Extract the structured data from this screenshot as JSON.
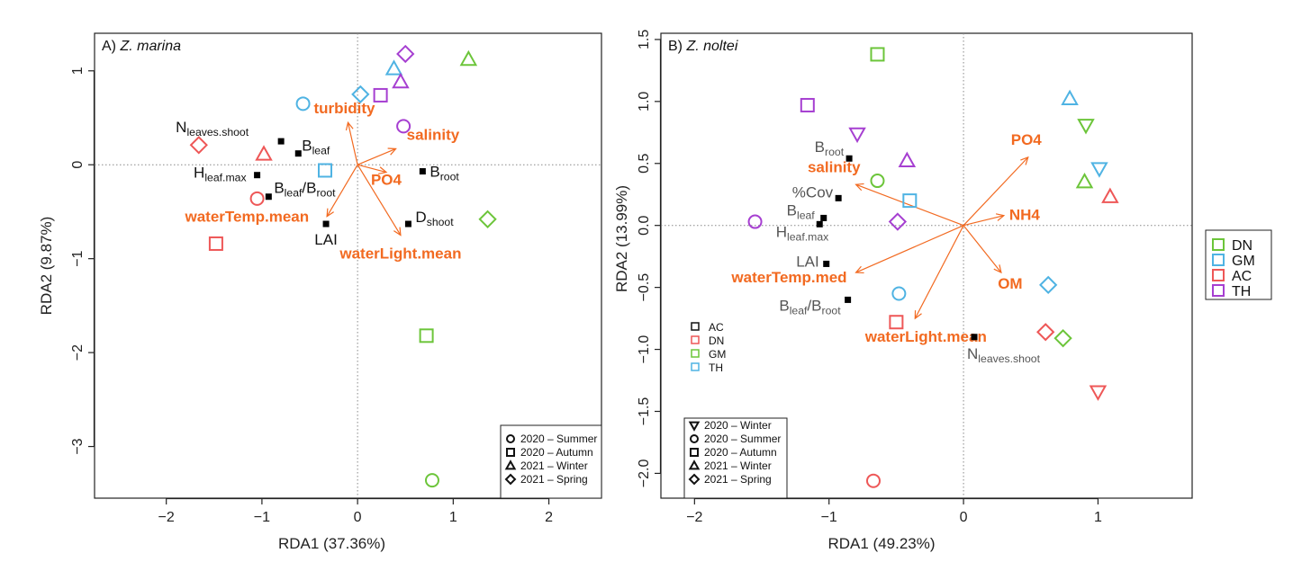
{
  "colors": {
    "DN": "#6cc53a",
    "GM": "#4fb3e3",
    "AC": "#ee5757",
    "TH": "#a63fd1",
    "arrow": "#f26a21",
    "variable_black": "#111111",
    "variable_grey": "#555555"
  },
  "chart_data": [
    {
      "type": "scatter",
      "panel_label": "A)",
      "panel_species": "Z. marina",
      "xlabel": "RDA1 (37.36%)",
      "ylabel": "RDA2 (9.87%)",
      "xlim": [
        -2.75,
        2.55
      ],
      "ylim": [
        -3.55,
        1.4
      ],
      "xticks": [
        -2,
        -1,
        0,
        1,
        2
      ],
      "yticks": [
        -3,
        -2,
        -1,
        0,
        1
      ],
      "grid": false,
      "zero_lines": true,
      "season_legend": {
        "position": "bottom-right",
        "items": [
          {
            "label": "2020 – Summer",
            "shape": "circle"
          },
          {
            "label": "2020 – Autumn",
            "shape": "square"
          },
          {
            "label": "2021 – Winter",
            "shape": "triangle-up"
          },
          {
            "label": "2021 – Spring",
            "shape": "diamond"
          }
        ]
      },
      "sites": [
        {
          "site": "TH",
          "shape": "diamond",
          "x": 0.5,
          "y": 1.18
        },
        {
          "site": "GM",
          "shape": "triangle-up",
          "x": 0.38,
          "y": 1.02
        },
        {
          "site": "TH",
          "shape": "triangle-up",
          "x": 0.45,
          "y": 0.88
        },
        {
          "site": "DN",
          "shape": "triangle-up",
          "x": 1.16,
          "y": 1.12
        },
        {
          "site": "GM",
          "shape": "diamond",
          "x": 0.03,
          "y": 0.75
        },
        {
          "site": "TH",
          "shape": "square",
          "x": 0.24,
          "y": 0.74
        },
        {
          "site": "GM",
          "shape": "circle",
          "x": -0.57,
          "y": 0.65
        },
        {
          "site": "TH",
          "shape": "circle",
          "x": 0.48,
          "y": 0.41
        },
        {
          "site": "AC",
          "shape": "diamond",
          "x": -1.66,
          "y": 0.21
        },
        {
          "site": "AC",
          "shape": "triangle-up",
          "x": -0.98,
          "y": 0.11
        },
        {
          "site": "GM",
          "shape": "square",
          "x": -0.34,
          "y": -0.06
        },
        {
          "site": "AC",
          "shape": "circle",
          "x": -1.05,
          "y": -0.36
        },
        {
          "site": "AC",
          "shape": "square",
          "x": -1.48,
          "y": -0.84
        },
        {
          "site": "DN",
          "shape": "diamond",
          "x": 1.36,
          "y": -0.58
        },
        {
          "site": "DN",
          "shape": "square",
          "x": 0.72,
          "y": -1.82
        },
        {
          "site": "DN",
          "shape": "circle",
          "x": 0.78,
          "y": -3.36
        }
      ],
      "response_variables": [
        {
          "main": "N",
          "sub": "leaves.shoot",
          "x": -0.8,
          "y": 0.25
        },
        {
          "main": "B",
          "sub": "leaf",
          "x": -0.62,
          "y": 0.12
        },
        {
          "main": "H",
          "sub": "leaf.max",
          "x": -1.05,
          "y": -0.11
        },
        {
          "main": "B",
          "sub": "leaf",
          "main2": "/B",
          "sub2": "root",
          "x": -0.93,
          "y": -0.34
        },
        {
          "main": "LAI",
          "sub": "",
          "x": -0.33,
          "y": -0.63
        },
        {
          "main": "B",
          "sub": "root",
          "x": 0.68,
          "y": -0.07
        },
        {
          "main": "D",
          "sub": "shoot",
          "x": 0.53,
          "y": -0.63
        }
      ],
      "environmental_vectors": [
        {
          "label": "turbidity",
          "x": -0.1,
          "y": 0.45
        },
        {
          "label": "salinity",
          "x": 0.4,
          "y": 0.17
        },
        {
          "label": "PO4",
          "x": 0.3,
          "y": -0.08
        },
        {
          "label": "waterTemp.mean",
          "x": -0.32,
          "y": -0.55
        },
        {
          "label": "waterLight.mean",
          "x": 0.45,
          "y": -0.75
        }
      ]
    },
    {
      "type": "scatter",
      "panel_label": "B)",
      "panel_species": "Z. noltei",
      "xlabel": "RDA1 (49.23%)",
      "ylabel": "RDA2 (13.99%)",
      "xlim": [
        -2.25,
        1.7
      ],
      "ylim": [
        -2.2,
        1.55
      ],
      "xticks": [
        -2,
        -1,
        0,
        1
      ],
      "yticks": [
        -2.0,
        -1.5,
        -1.0,
        -0.5,
        0.0,
        0.5,
        1.0,
        1.5
      ],
      "grid": false,
      "zero_lines": true,
      "site_legend_small": {
        "position": "left-center",
        "items": [
          "AC",
          "DN",
          "GM",
          "TH"
        ],
        "colors": [
          "#111111",
          "#ee5757",
          "#6cc53a",
          "#4fb3e3"
        ]
      },
      "season_legend": {
        "position": "bottom-left",
        "items": [
          {
            "label": "2020 – Winter",
            "shape": "triangle-down"
          },
          {
            "label": "2020 – Summer",
            "shape": "circle"
          },
          {
            "label": "2020 – Autumn",
            "shape": "square"
          },
          {
            "label": "2021 – Winter",
            "shape": "triangle-up"
          },
          {
            "label": "2021 – Spring",
            "shape": "diamond"
          }
        ]
      },
      "site_legend": {
        "position": "outside-right",
        "items": [
          "DN",
          "GM",
          "AC",
          "TH"
        ]
      },
      "sites": [
        {
          "site": "DN",
          "shape": "square",
          "x": -0.64,
          "y": 1.38
        },
        {
          "site": "TH",
          "shape": "square",
          "x": -1.16,
          "y": 0.97
        },
        {
          "site": "GM",
          "shape": "triangle-up",
          "x": 0.79,
          "y": 1.02
        },
        {
          "site": "DN",
          "shape": "triangle-down",
          "x": 0.91,
          "y": 0.81
        },
        {
          "site": "TH",
          "shape": "triangle-down",
          "x": -0.79,
          "y": 0.74
        },
        {
          "site": "TH",
          "shape": "triangle-up",
          "x": -0.42,
          "y": 0.52
        },
        {
          "site": "GM",
          "shape": "triangle-down",
          "x": 1.01,
          "y": 0.46
        },
        {
          "site": "DN",
          "shape": "circle",
          "x": -0.64,
          "y": 0.36
        },
        {
          "site": "DN",
          "shape": "triangle-up",
          "x": 0.9,
          "y": 0.35
        },
        {
          "site": "AC",
          "shape": "triangle-up",
          "x": 1.09,
          "y": 0.23
        },
        {
          "site": "GM",
          "shape": "square",
          "x": -0.4,
          "y": 0.2
        },
        {
          "site": "TH",
          "shape": "circle",
          "x": -1.55,
          "y": 0.03
        },
        {
          "site": "TH",
          "shape": "diamond",
          "x": -0.49,
          "y": 0.03
        },
        {
          "site": "GM",
          "shape": "diamond",
          "x": 0.63,
          "y": -0.48
        },
        {
          "site": "GM",
          "shape": "circle",
          "x": -0.48,
          "y": -0.55
        },
        {
          "site": "AC",
          "shape": "square",
          "x": -0.5,
          "y": -0.78
        },
        {
          "site": "AC",
          "shape": "diamond",
          "x": 0.61,
          "y": -0.86
        },
        {
          "site": "DN",
          "shape": "diamond",
          "x": 0.74,
          "y": -0.91
        },
        {
          "site": "AC",
          "shape": "triangle-down",
          "x": 1.0,
          "y": -1.34
        },
        {
          "site": "AC",
          "shape": "circle",
          "x": -0.67,
          "y": -2.06
        }
      ],
      "response_variables": [
        {
          "main": "B",
          "sub": "root",
          "x": -0.85,
          "y": 0.54
        },
        {
          "main": "salinity",
          "sub": "",
          "x": -0.78,
          "y": 0.4,
          "color": "arrow"
        },
        {
          "main": "%Cov",
          "sub": "",
          "x": -0.93,
          "y": 0.22
        },
        {
          "main": "B",
          "sub": "leaf",
          "x": -1.04,
          "y": 0.06
        },
        {
          "main": "H",
          "sub": "leaf.max",
          "x": -1.07,
          "y": 0.01
        },
        {
          "main": "LAI",
          "sub": "",
          "x": -1.02,
          "y": -0.31
        },
        {
          "main": "B",
          "sub": "leaf",
          "main2": "/B",
          "sub2": "root",
          "x": -0.86,
          "y": -0.6
        },
        {
          "main": "N",
          "sub": "leaves.shoot",
          "x": 0.08,
          "y": -0.9
        }
      ],
      "environmental_vectors": [
        {
          "label": "PO4",
          "x": 0.48,
          "y": 0.55
        },
        {
          "label": "salinity",
          "x": -0.8,
          "y": 0.33
        },
        {
          "label": "NH4",
          "x": 0.3,
          "y": 0.08
        },
        {
          "label": "waterTemp.med",
          "x": -0.8,
          "y": -0.38
        },
        {
          "label": "OM",
          "x": 0.28,
          "y": -0.38
        },
        {
          "label": "waterLight.mean",
          "x": -0.36,
          "y": -0.75
        }
      ]
    }
  ]
}
